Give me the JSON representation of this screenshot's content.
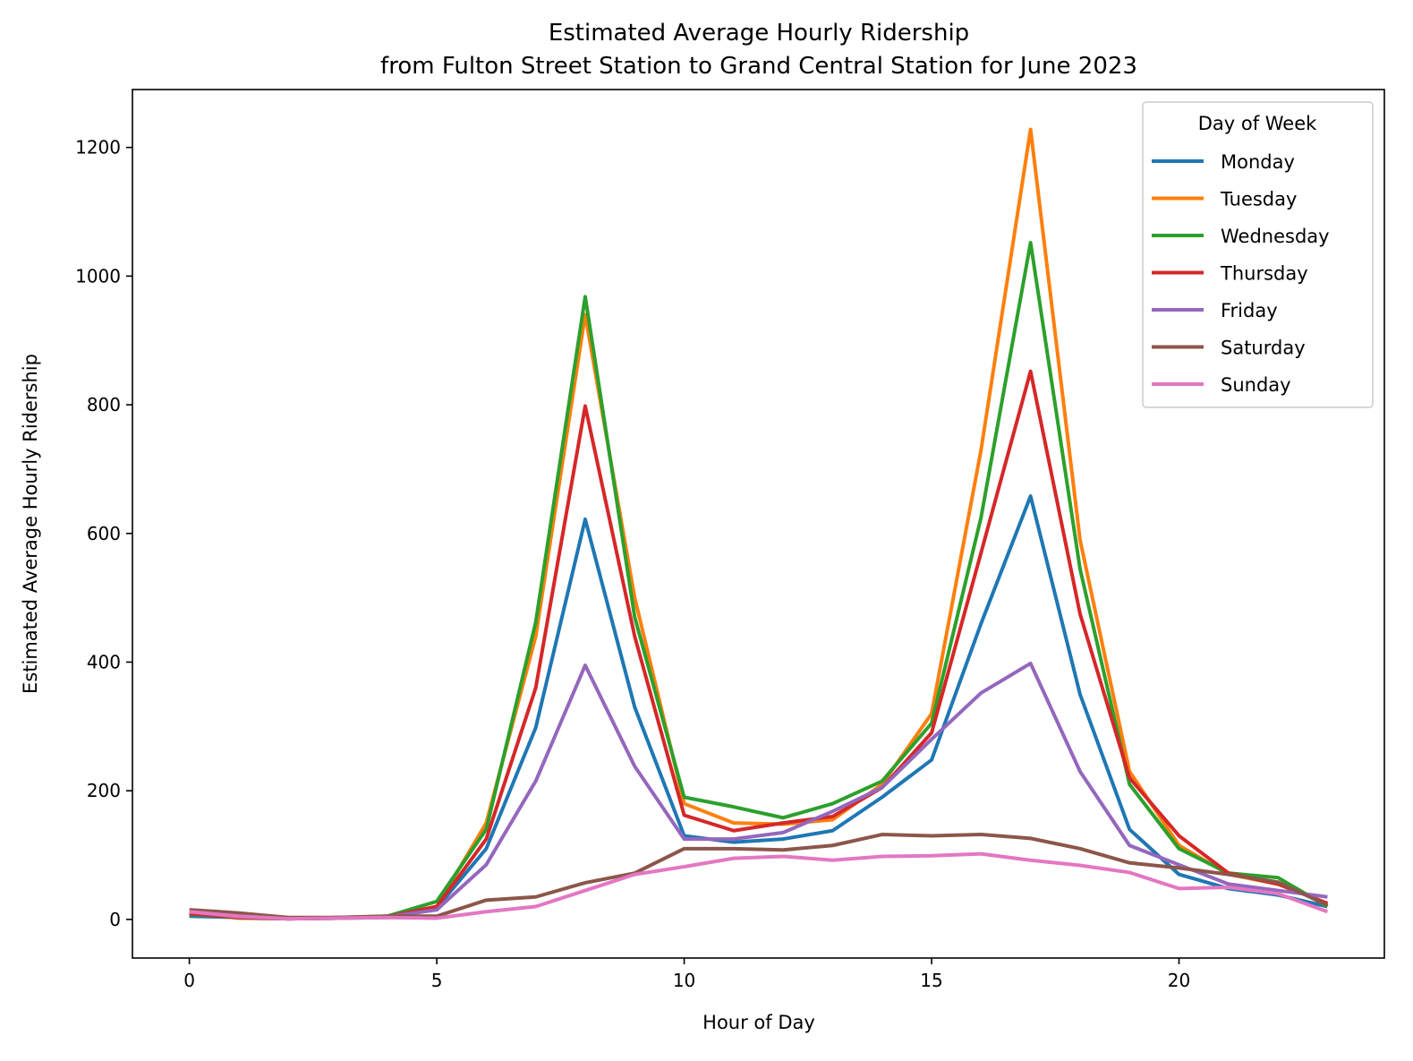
{
  "chart_data": {
    "type": "line",
    "title": "Estimated Average Hourly Ridership",
    "subtitle": "from Fulton Street Station to Grand Central Station for June 2023",
    "xlabel": "Hour of Day",
    "ylabel": "Estimated Average Hourly Ridership",
    "xlim": [
      -1.15,
      24.15
    ],
    "ylim": [
      -60,
      1290
    ],
    "xticks": [
      0,
      5,
      10,
      15,
      20
    ],
    "yticks": [
      0,
      200,
      400,
      600,
      800,
      1000,
      1200
    ],
    "grid": false,
    "legend": {
      "title": "Day of Week",
      "placement": "top-right"
    },
    "x": [
      0,
      1,
      2,
      3,
      4,
      5,
      6,
      7,
      8,
      9,
      10,
      11,
      12,
      13,
      14,
      15,
      16,
      17,
      18,
      19,
      20,
      21,
      22,
      23
    ],
    "series": [
      {
        "name": "Monday",
        "color": "#1f77b4",
        "values": [
          5,
          3,
          1,
          2,
          3,
          18,
          110,
          298,
          622,
          330,
          130,
          120,
          125,
          138,
          190,
          248,
          460,
          658,
          350,
          140,
          70,
          48,
          38,
          20
        ]
      },
      {
        "name": "Tuesday",
        "color": "#ff7f0e",
        "values": [
          10,
          2,
          1,
          3,
          5,
          20,
          150,
          440,
          940,
          500,
          180,
          150,
          148,
          155,
          210,
          320,
          730,
          1228,
          590,
          230,
          115,
          70,
          55,
          25
        ]
      },
      {
        "name": "Wednesday",
        "color": "#2ca02c",
        "values": [
          8,
          3,
          1,
          2,
          5,
          28,
          140,
          462,
          968,
          470,
          190,
          175,
          158,
          180,
          215,
          305,
          625,
          1052,
          545,
          210,
          110,
          72,
          65,
          20
        ]
      },
      {
        "name": "Thursday",
        "color": "#d62728",
        "values": [
          9,
          3,
          1,
          2,
          4,
          20,
          125,
          360,
          798,
          440,
          162,
          138,
          150,
          160,
          205,
          290,
          570,
          852,
          475,
          220,
          130,
          72,
          55,
          25
        ]
      },
      {
        "name": "Friday",
        "color": "#9467bd",
        "values": [
          12,
          4,
          1,
          3,
          4,
          15,
          85,
          215,
          395,
          238,
          125,
          125,
          135,
          168,
          205,
          280,
          352,
          398,
          230,
          115,
          85,
          55,
          45,
          35
        ]
      },
      {
        "name": "Saturday",
        "color": "#8c564b",
        "values": [
          15,
          10,
          3,
          3,
          5,
          5,
          30,
          35,
          57,
          72,
          110,
          110,
          108,
          115,
          132,
          130,
          132,
          126,
          110,
          88,
          80,
          70,
          58,
          22
        ]
      },
      {
        "name": "Sunday",
        "color": "#e377c2",
        "values": [
          12,
          5,
          1,
          2,
          3,
          2,
          12,
          20,
          45,
          70,
          82,
          95,
          98,
          92,
          98,
          99,
          102,
          92,
          84,
          73,
          48,
          50,
          40,
          12
        ]
      }
    ]
  }
}
